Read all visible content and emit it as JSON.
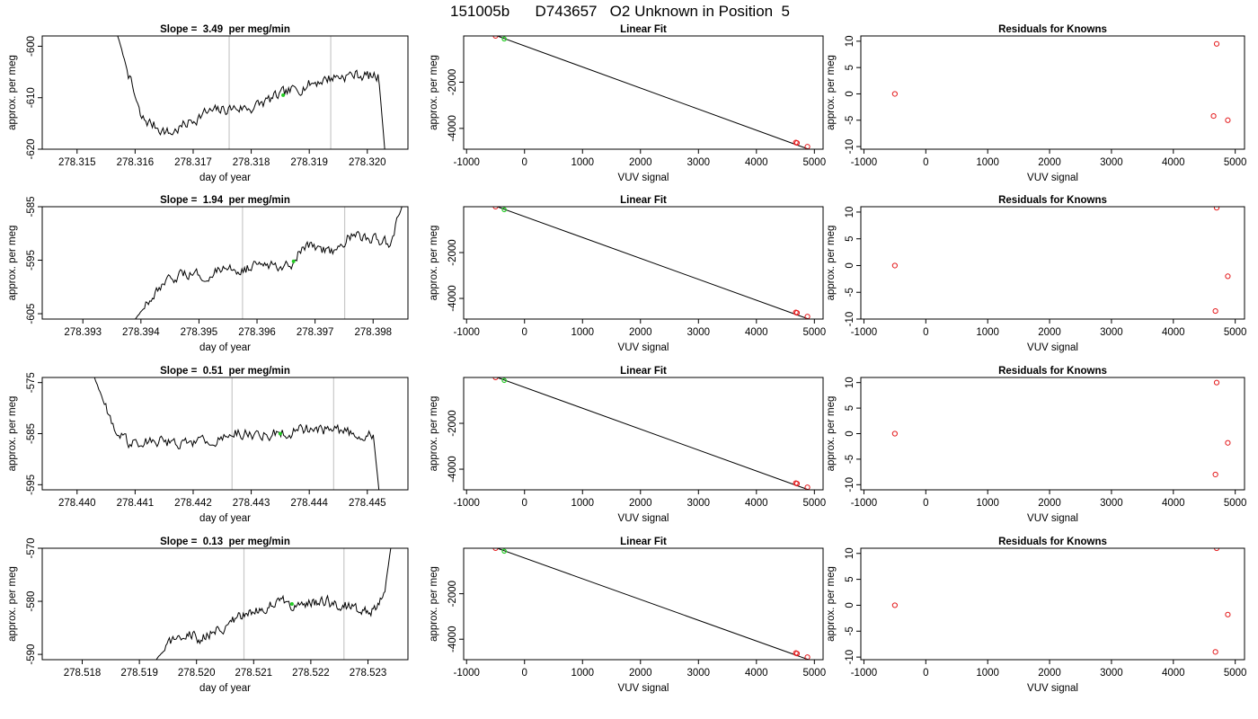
{
  "figure": {
    "title": "151005b      D743657   O2 Unknown in Position  5"
  },
  "colors": {
    "trace": "#000000",
    "fit_line": "#000000",
    "known_points": "#e41a1c",
    "unknown_points": "#22cc22",
    "vlines": "#c8c8c8",
    "axes": "#000000"
  },
  "chart_data": [
    {
      "type": "line",
      "row": 1,
      "col": 1,
      "title": "Slope =  3.49  per meg/min",
      "xlabel": "day of year",
      "ylabel": "approx. per meg",
      "xlim": [
        278.3144,
        278.3207
      ],
      "ylim": [
        -620,
        -598
      ],
      "xticks": [
        278.315,
        278.316,
        278.317,
        278.318,
        278.319,
        278.32
      ],
      "xtick_labels": [
        "278.315",
        "278.316",
        "278.317",
        "278.318",
        "278.319",
        "278.320"
      ],
      "yticks": [
        -620,
        -610,
        -600
      ],
      "ytick_labels": [
        "-620",
        "-610",
        "-600"
      ],
      "vlines": [
        278.31762,
        278.31937
      ],
      "trace_start": 278.3157,
      "trace_end": 278.3203,
      "trace": [
        [
          278.3157,
          -598
        ],
        [
          278.3161,
          -614
        ],
        [
          278.3166,
          -617
        ],
        [
          278.3172,
          -613
        ],
        [
          278.3177,
          -612
        ],
        [
          278.318,
          -612
        ],
        [
          278.3185,
          -609.5
        ],
        [
          278.3191,
          -607
        ],
        [
          278.3194,
          -606
        ],
        [
          278.3198,
          -605.5
        ],
        [
          278.3202,
          -606
        ],
        [
          278.3203,
          -620
        ]
      ],
      "green_point": [
        278.31855,
        -609.5
      ]
    },
    {
      "type": "scatter",
      "row": 1,
      "col": 2,
      "title": "Linear Fit",
      "xlabel": "VUV signal",
      "ylabel": "approx. per meg",
      "xlim": [
        -1050,
        5150
      ],
      "ylim": [
        -4900,
        0
      ],
      "xticks": [
        -1000,
        0,
        1000,
        2000,
        3000,
        4000,
        5000
      ],
      "xtick_labels": [
        "-1000",
        "0",
        "1000",
        "2000",
        "3000",
        "4000",
        "5000"
      ],
      "yticks": [
        -4000,
        -2000
      ],
      "ytick_labels": [
        "-4000",
        "-2000"
      ],
      "fit_line": [
        [
          -800,
          300
        ],
        [
          4900,
          -4900
        ]
      ],
      "known_points": [
        [
          -500,
          2
        ],
        [
          4680,
          -4610
        ],
        [
          4700,
          -4630
        ],
        [
          4880,
          -4790
        ]
      ],
      "unknown_points": [
        [
          -350,
          -130
        ]
      ]
    },
    {
      "type": "scatter",
      "row": 1,
      "col": 3,
      "title": "Residuals for Knowns",
      "xlabel": "VUV signal",
      "ylabel": "approx. per meg",
      "xlim": [
        -1050,
        5150
      ],
      "ylim": [
        -10.5,
        11
      ],
      "xticks": [
        -1000,
        0,
        1000,
        2000,
        3000,
        4000,
        5000
      ],
      "xtick_labels": [
        "-1000",
        "0",
        "1000",
        "2000",
        "3000",
        "4000",
        "5000"
      ],
      "yticks": [
        -10,
        -5,
        0,
        5,
        10
      ],
      "ytick_labels": [
        "-10",
        "-5",
        "0",
        "5",
        "10"
      ],
      "points": [
        [
          -500,
          0
        ],
        [
          4650,
          -4.2
        ],
        [
          4700,
          9.5
        ],
        [
          4880,
          -5
        ]
      ]
    },
    {
      "type": "line",
      "row": 2,
      "col": 1,
      "title": "Slope =  1.94  per meg/min",
      "xlabel": "day of year",
      "ylabel": "approx. per meg",
      "xlim": [
        278.3923,
        278.3986
      ],
      "ylim": [
        -606,
        -585
      ],
      "xticks": [
        278.393,
        278.394,
        278.395,
        278.396,
        278.397,
        278.398
      ],
      "xtick_labels": [
        "278.393",
        "278.394",
        "278.395",
        "278.396",
        "278.397",
        "278.398"
      ],
      "yticks": [
        -605,
        -595,
        -585
      ],
      "ytick_labels": [
        "-605",
        "-595",
        "-585"
      ],
      "vlines": [
        278.39575,
        278.39751
      ],
      "trace_start": 278.3939,
      "trace_end": 278.3985,
      "trace": [
        [
          278.3939,
          -606
        ],
        [
          278.3943,
          -601
        ],
        [
          278.3946,
          -598
        ],
        [
          278.3952,
          -597.5
        ],
        [
          278.3957,
          -596.5
        ],
        [
          278.3962,
          -596
        ],
        [
          278.3966,
          -595.5
        ],
        [
          278.3968,
          -592.5
        ],
        [
          278.3973,
          -593
        ],
        [
          278.3976,
          -590.5
        ],
        [
          278.398,
          -591
        ],
        [
          278.3983,
          -592
        ],
        [
          278.3985,
          -585
        ]
      ],
      "green_point": [
        278.39663,
        -595.2
      ]
    },
    {
      "type": "scatter",
      "row": 2,
      "col": 2,
      "title": "Linear Fit",
      "xlabel": "VUV signal",
      "ylabel": "approx. per meg",
      "xlim": [
        -1050,
        5150
      ],
      "ylim": [
        -4900,
        0
      ],
      "xticks": [
        -1000,
        0,
        1000,
        2000,
        3000,
        4000,
        5000
      ],
      "xtick_labels": [
        "-1000",
        "0",
        "1000",
        "2000",
        "3000",
        "4000",
        "5000"
      ],
      "yticks": [
        -4000,
        -2000
      ],
      "ytick_labels": [
        "-4000",
        "-2000"
      ],
      "fit_line": [
        [
          -800,
          300
        ],
        [
          4900,
          -4900
        ]
      ],
      "known_points": [
        [
          -500,
          2
        ],
        [
          4680,
          -4610
        ],
        [
          4700,
          -4630
        ],
        [
          4880,
          -4790
        ]
      ],
      "unknown_points": [
        [
          -350,
          -130
        ]
      ]
    },
    {
      "type": "scatter",
      "row": 2,
      "col": 3,
      "title": "Residuals for Knowns",
      "xlabel": "VUV signal",
      "ylabel": "approx. per meg",
      "xlim": [
        -1050,
        5150
      ],
      "ylim": [
        -10,
        11
      ],
      "xticks": [
        -1000,
        0,
        1000,
        2000,
        3000,
        4000,
        5000
      ],
      "xtick_labels": [
        "-1000",
        "0",
        "1000",
        "2000",
        "3000",
        "4000",
        "5000"
      ],
      "yticks": [
        -10,
        -5,
        0,
        5,
        10
      ],
      "ytick_labels": [
        "-10",
        "-5",
        "0",
        "5",
        "10"
      ],
      "points": [
        [
          -500,
          0
        ],
        [
          4680,
          -8.5
        ],
        [
          4700,
          10.8
        ],
        [
          4880,
          -2
        ]
      ]
    },
    {
      "type": "line",
      "row": 3,
      "col": 1,
      "title": "Slope =  0.51  per meg/min",
      "xlabel": "day of year",
      "ylabel": "approx. per meg",
      "xlim": [
        278.4394,
        278.4457
      ],
      "ylim": [
        -596,
        -574
      ],
      "xticks": [
        278.44,
        278.441,
        278.442,
        278.443,
        278.444,
        278.445
      ],
      "xtick_labels": [
        "278.440",
        "278.441",
        "278.442",
        "278.443",
        "278.444",
        "278.445"
      ],
      "yticks": [
        -595,
        -585,
        -575
      ],
      "ytick_labels": [
        "-595",
        "-585",
        "-575"
      ],
      "vlines": [
        278.44267,
        278.44442
      ],
      "trace_start": 278.4403,
      "trace_end": 278.4452,
      "trace": [
        [
          278.4403,
          -574
        ],
        [
          278.4406,
          -583
        ],
        [
          278.4409,
          -587
        ],
        [
          278.4413,
          -586
        ],
        [
          278.4418,
          -587
        ],
        [
          278.4422,
          -586.5
        ],
        [
          278.4427,
          -585
        ],
        [
          278.4432,
          -585
        ],
        [
          278.4435,
          -585
        ],
        [
          278.444,
          -584
        ],
        [
          278.4446,
          -584.5
        ],
        [
          278.4451,
          -585
        ],
        [
          278.4452,
          -596
        ]
      ],
      "green_point": [
        278.4435,
        -585
      ]
    },
    {
      "type": "scatter",
      "row": 3,
      "col": 2,
      "title": "Linear Fit",
      "xlabel": "VUV signal",
      "ylabel": "approx. per meg",
      "xlim": [
        -1050,
        5150
      ],
      "ylim": [
        -4900,
        0
      ],
      "xticks": [
        -1000,
        0,
        1000,
        2000,
        3000,
        4000,
        5000
      ],
      "xtick_labels": [
        "-1000",
        "0",
        "1000",
        "2000",
        "3000",
        "4000",
        "5000"
      ],
      "yticks": [
        -4000,
        -2000
      ],
      "ytick_labels": [
        "-4000",
        "-2000"
      ],
      "fit_line": [
        [
          -800,
          300
        ],
        [
          4900,
          -4900
        ]
      ],
      "known_points": [
        [
          -500,
          2
        ],
        [
          4680,
          -4610
        ],
        [
          4700,
          -4630
        ],
        [
          4880,
          -4790
        ]
      ],
      "unknown_points": [
        [
          -350,
          -130
        ]
      ]
    },
    {
      "type": "scatter",
      "row": 3,
      "col": 3,
      "title": "Residuals for Knowns",
      "xlabel": "VUV signal",
      "ylabel": "approx. per meg",
      "xlim": [
        -1050,
        5150
      ],
      "ylim": [
        -11,
        11
      ],
      "xticks": [
        -1000,
        0,
        1000,
        2000,
        3000,
        4000,
        5000
      ],
      "xtick_labels": [
        "-1000",
        "0",
        "1000",
        "2000",
        "3000",
        "4000",
        "5000"
      ],
      "yticks": [
        -10,
        -5,
        0,
        5,
        10
      ],
      "ytick_labels": [
        "-10",
        "-5",
        "0",
        "5",
        "10"
      ],
      "points": [
        [
          -500,
          0
        ],
        [
          4680,
          -8
        ],
        [
          4700,
          10
        ],
        [
          4880,
          -1.8
        ]
      ]
    },
    {
      "type": "line",
      "row": 4,
      "col": 1,
      "title": "Slope =  0.13  per meg/min",
      "xlabel": "day of year",
      "ylabel": "approx. per meg",
      "xlim": [
        278.5173,
        278.5237
      ],
      "ylim": [
        -591,
        -570
      ],
      "xticks": [
        278.518,
        278.519,
        278.52,
        278.521,
        278.522,
        278.523
      ],
      "xtick_labels": [
        "278.518",
        "278.519",
        "278.520",
        "278.521",
        "278.522",
        "278.523"
      ],
      "yticks": [
        -590,
        -580,
        -570
      ],
      "ytick_labels": [
        "-590",
        "-580",
        "-570"
      ],
      "vlines": [
        278.52083,
        278.52258
      ],
      "trace_start": 278.5193,
      "trace_end": 278.5234,
      "trace": [
        [
          278.5193,
          -591
        ],
        [
          278.5197,
          -586
        ],
        [
          278.5201,
          -587
        ],
        [
          278.5206,
          -584
        ],
        [
          278.521,
          -582
        ],
        [
          278.5214,
          -580
        ],
        [
          278.5217,
          -580.5
        ],
        [
          278.5222,
          -580
        ],
        [
          278.5227,
          -581
        ],
        [
          278.5231,
          -582
        ],
        [
          278.5233,
          -577
        ],
        [
          278.5234,
          -570
        ]
      ],
      "green_point": [
        278.52167,
        -580.5
      ]
    },
    {
      "type": "scatter",
      "row": 4,
      "col": 2,
      "title": "Linear Fit",
      "xlabel": "VUV signal",
      "ylabel": "approx. per meg",
      "xlim": [
        -1050,
        5150
      ],
      "ylim": [
        -4900,
        0
      ],
      "xticks": [
        -1000,
        0,
        1000,
        2000,
        3000,
        4000,
        5000
      ],
      "xtick_labels": [
        "-1000",
        "0",
        "1000",
        "2000",
        "3000",
        "4000",
        "5000"
      ],
      "yticks": [
        -4000,
        -2000
      ],
      "ytick_labels": [
        "-4000",
        "-2000"
      ],
      "fit_line": [
        [
          -800,
          300
        ],
        [
          4900,
          -4900
        ]
      ],
      "known_points": [
        [
          -500,
          2
        ],
        [
          4680,
          -4610
        ],
        [
          4700,
          -4630
        ],
        [
          4880,
          -4790
        ]
      ],
      "unknown_points": [
        [
          -350,
          -130
        ]
      ]
    },
    {
      "type": "scatter",
      "row": 4,
      "col": 3,
      "title": "Residuals for Knowns",
      "xlabel": "VUV signal",
      "ylabel": "approx. per meg",
      "xlim": [
        -1050,
        5150
      ],
      "ylim": [
        -10.5,
        11
      ],
      "xticks": [
        -1000,
        0,
        1000,
        2000,
        3000,
        4000,
        5000
      ],
      "xtick_labels": [
        "-1000",
        "0",
        "1000",
        "2000",
        "3000",
        "4000",
        "5000"
      ],
      "yticks": [
        -10,
        -5,
        0,
        5,
        10
      ],
      "ytick_labels": [
        "-10",
        "-5",
        "0",
        "5",
        "10"
      ],
      "points": [
        [
          -500,
          0
        ],
        [
          4680,
          -9
        ],
        [
          4700,
          11
        ],
        [
          4880,
          -1.8
        ]
      ]
    }
  ]
}
